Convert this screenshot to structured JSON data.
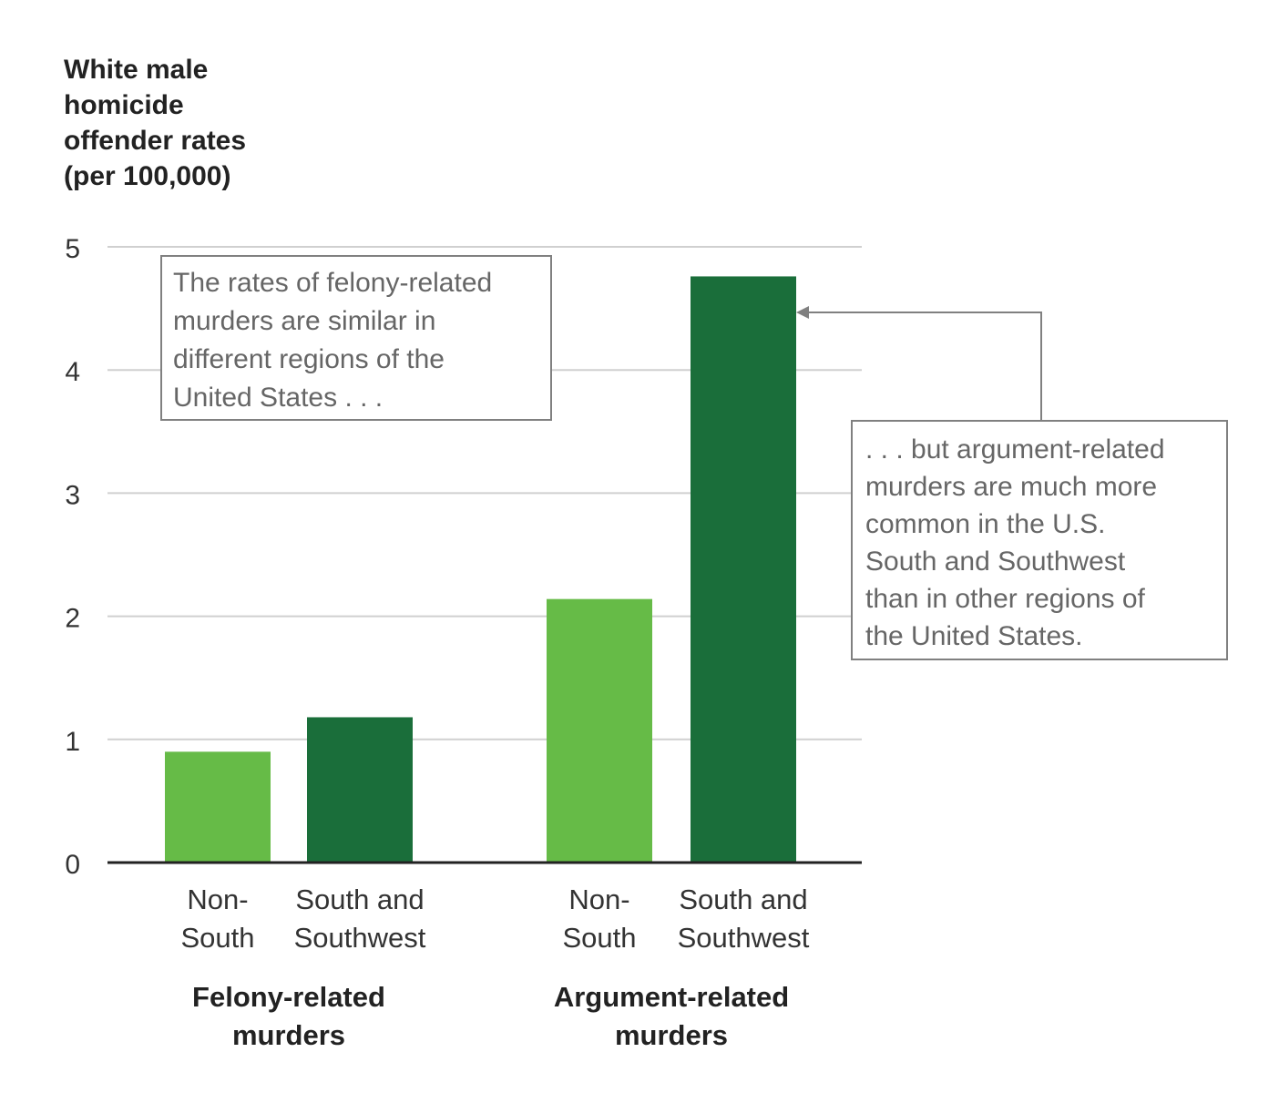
{
  "chart_data": {
    "type": "bar",
    "ylabel_lines": [
      "White male",
      "homicide",
      "offender rates",
      "(per 100,000)"
    ],
    "ylim": [
      0,
      5
    ],
    "yticks": [
      0,
      1,
      2,
      3,
      4,
      5
    ],
    "grid": true,
    "groups": [
      {
        "label_lines": [
          "Felony-related",
          "murders"
        ],
        "bars": [
          {
            "label_lines": [
              "Non-",
              "South"
            ],
            "value": 0.9
          },
          {
            "label_lines": [
              "South and",
              "Southwest"
            ],
            "value": 1.18
          }
        ]
      },
      {
        "label_lines": [
          "Argument-related",
          "murders"
        ],
        "bars": [
          {
            "label_lines": [
              "Non-",
              "South"
            ],
            "value": 2.14
          },
          {
            "label_lines": [
              "South and",
              "Southwest"
            ],
            "value": 4.76
          }
        ]
      }
    ],
    "annotations": [
      {
        "lines": [
          "The rates of felony-related",
          "murders are similar in",
          "different regions of the",
          "United States . . ."
        ]
      },
      {
        "lines": [
          ". . . but argument-related",
          "murders are much more",
          "common in the U.S.",
          "South and Southwest",
          "than in other regions of",
          "the United States."
        ],
        "points_to_value": 4.76
      }
    ],
    "colors": {
      "non_south": "#66bb47",
      "south": "#1a6e3a",
      "grid": "#d0d0d0",
      "axis": "#222222",
      "box_border": "#808080",
      "annotation_text": "#666666"
    }
  }
}
